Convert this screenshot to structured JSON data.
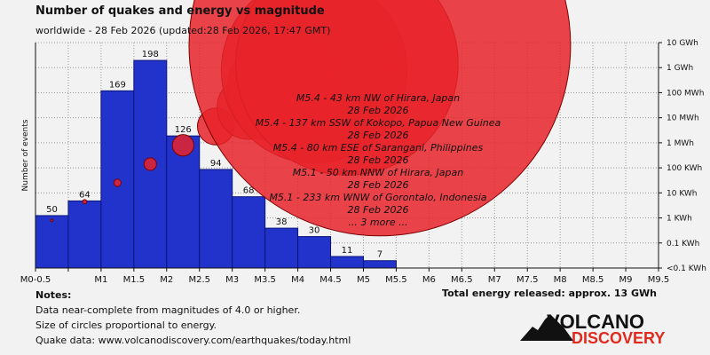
{
  "title": "Number of quakes and energy vs magnitude",
  "subtitle": "worldwide - 28 Feb 2026 (updated:28 Feb 2026, 17:47 GMT)",
  "notes": {
    "heading": "Notes:",
    "lines": [
      "Data near-complete from magnitudes of 4.0 or higher.",
      "Size of circles proportional to energy.",
      "Quake data: www.volcanodiscovery.com/earthquakes/today.html"
    ]
  },
  "total_energy": "Total energy released: approx. 13 GWh",
  "logo": {
    "line1": "VOLCANO",
    "line2": "DISCOVERY"
  },
  "colors": {
    "bar": "#2233cc",
    "bar_stroke": "#0b1577",
    "circle": "#e8232a",
    "circle_stroke": "#7a0000",
    "logo_red": "#e02a1e"
  },
  "chart_data": {
    "type": "bar",
    "title": "Number of quakes and energy vs magnitude",
    "ylabel": "Number of events",
    "ylim": [
      0,
      215
    ],
    "categories": [
      "M0-0.5",
      "M0.5-1",
      "M1-1.5",
      "M1.5-2",
      "M2-2.5",
      "M2.5-3",
      "M3-3.5",
      "M3.5-4",
      "M4-4.5",
      "M4.5-5",
      "M5-5.5"
    ],
    "values": [
      50,
      64,
      169,
      198,
      126,
      94,
      68,
      38,
      30,
      11,
      7
    ],
    "x_ticks": [
      "M0-0.5",
      "M1",
      "M1.5",
      "M2",
      "M2.5",
      "M3",
      "M3.5",
      "M4",
      "M4.5",
      "M5",
      "M5.5",
      "M6",
      "M6.5",
      "M7",
      "M7.5",
      "M8",
      "M8.5",
      "M9",
      "M9.5"
    ],
    "energy_axis": {
      "labels": [
        "10 GWh",
        "1 GWh",
        "100 MWh",
        "10 MWh",
        "1 MWh",
        "100 KWh",
        "10 KWh",
        "1 KWh",
        "0.1 KWh",
        "<0.1 KWh"
      ],
      "exponents": [
        7,
        6,
        5,
        4,
        3,
        2,
        1,
        0,
        -1,
        -2
      ],
      "unit": "log10 KWh"
    },
    "energy_circles": [
      {
        "magnitude": 0.25,
        "energy_log10_kwh": -0.1
      },
      {
        "magnitude": 0.75,
        "energy_log10_kwh": 0.65
      },
      {
        "magnitude": 1.25,
        "energy_log10_kwh": 1.4
      },
      {
        "magnitude": 1.75,
        "energy_log10_kwh": 2.15
      },
      {
        "magnitude": 2.25,
        "energy_log10_kwh": 2.9
      },
      {
        "magnitude": 2.75,
        "energy_log10_kwh": 3.65
      },
      {
        "magnitude": 3.25,
        "energy_log10_kwh": 4.4
      },
      {
        "magnitude": 3.75,
        "energy_log10_kwh": 5.15
      },
      {
        "magnitude": 4.25,
        "energy_log10_kwh": 5.9
      },
      {
        "magnitude": 4.75,
        "energy_log10_kwh": 6.15
      },
      {
        "magnitude": 5.25,
        "energy_log10_kwh": 6.9
      }
    ],
    "annotations": [
      "M5.4 - 43 km NW of Hirara, Japan",
      "28 Feb 2026",
      "M5.4 - 137 km SSW of Kokopo, Papua New Guinea",
      "28 Feb 2026",
      "M5.4 - 80 km ESE of Sarangani, Philippines",
      "28 Feb 2026",
      "M5.1 - 50 km NNW of Hirara, Japan",
      "28 Feb 2026",
      "M5.1 - 233 km WNW of Gorontalo, Indonesia",
      "28 Feb 2026",
      "... 3 more ..."
    ]
  }
}
